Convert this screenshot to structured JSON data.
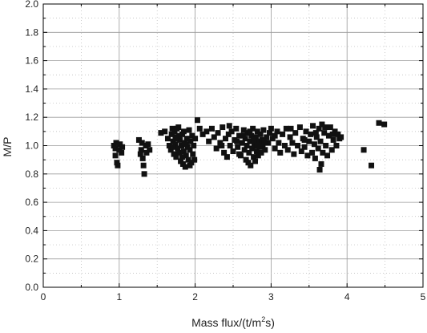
{
  "chart_data": {
    "type": "scatter",
    "title": "",
    "xlabel_base": "Mass flux/(t/m",
    "xlabel_sup": "2",
    "xlabel_tail": "s)",
    "ylabel": "M/P",
    "xlim": [
      0,
      5
    ],
    "ylim": [
      0,
      2.0
    ],
    "xticks": [
      0,
      1,
      2,
      3,
      4,
      5
    ],
    "xtick_labels": [
      "0",
      "1",
      "2",
      "3",
      "4",
      "5"
    ],
    "yticks": [
      0,
      0.2,
      0.4,
      0.6,
      0.8,
      1.0,
      1.2,
      1.4,
      1.6,
      1.8,
      2.0
    ],
    "ytick_labels": [
      "0.0",
      "0.2",
      "0.4",
      "0.6",
      "0.8",
      "1.0",
      "1.2",
      "1.4",
      "1.6",
      "1.8",
      "2.0"
    ],
    "grid": true,
    "marker": "square",
    "marker_color": "#111111",
    "series": [
      {
        "points": [
          [
            0.93,
            1.0
          ],
          [
            0.95,
            0.98
          ],
          [
            0.95,
            0.93
          ],
          [
            0.97,
            0.88
          ],
          [
            0.98,
            0.86
          ],
          [
            1.0,
            0.97
          ],
          [
            1.01,
            1.01
          ],
          [
            1.03,
            0.95
          ],
          [
            0.96,
            1.02
          ],
          [
            1.04,
            0.99
          ],
          [
            1.26,
            1.04
          ],
          [
            1.29,
            0.97
          ],
          [
            1.3,
            1.02
          ],
          [
            1.31,
            0.91
          ],
          [
            1.32,
            0.86
          ],
          [
            1.33,
            0.8
          ],
          [
            1.35,
            1.0
          ],
          [
            1.36,
            0.95
          ],
          [
            1.38,
            1.01
          ],
          [
            1.4,
            0.97
          ],
          [
            1.28,
            0.94
          ],
          [
            1.55,
            1.09
          ],
          [
            1.6,
            1.1
          ],
          [
            1.64,
            1.05
          ],
          [
            1.66,
            1.0
          ],
          [
            1.68,
            0.97
          ],
          [
            1.69,
            1.08
          ],
          [
            1.7,
            1.12
          ],
          [
            1.71,
            1.03
          ],
          [
            1.72,
            0.94
          ],
          [
            1.73,
            1.1
          ],
          [
            1.74,
            1.01
          ],
          [
            1.75,
            0.92
          ],
          [
            1.76,
            1.06
          ],
          [
            1.77,
            0.98
          ],
          [
            1.78,
            1.13
          ],
          [
            1.79,
            0.95
          ],
          [
            1.8,
            1.04
          ],
          [
            1.81,
            0.89
          ],
          [
            1.82,
            1.0
          ],
          [
            1.83,
            1.08
          ],
          [
            1.84,
            0.87
          ],
          [
            1.85,
            0.96
          ],
          [
            1.86,
            1.02
          ],
          [
            1.87,
            0.85
          ],
          [
            1.88,
            0.93
          ],
          [
            1.89,
            1.05
          ],
          [
            1.9,
            0.99
          ],
          [
            1.91,
            0.9
          ],
          [
            1.92,
            1.11
          ],
          [
            1.93,
            0.97
          ],
          [
            1.94,
            1.03
          ],
          [
            1.95,
            0.88
          ],
          [
            1.96,
            1.07
          ],
          [
            1.97,
            0.94
          ],
          [
            1.98,
            1.0
          ],
          [
            1.99,
            0.9
          ],
          [
            2.0,
            1.05
          ],
          [
            1.71,
            0.99
          ],
          [
            1.76,
            1.12
          ],
          [
            1.85,
            1.1
          ],
          [
            1.79,
            1.07
          ],
          [
            1.88,
            1.01
          ],
          [
            1.93,
            0.86
          ],
          [
            1.74,
            1.05
          ],
          [
            1.83,
            0.92
          ],
          [
            2.03,
            1.18
          ],
          [
            2.06,
            1.12
          ],
          [
            2.1,
            1.08
          ],
          [
            2.15,
            1.1
          ],
          [
            2.18,
            1.03
          ],
          [
            2.22,
            1.12
          ],
          [
            2.25,
            1.06
          ],
          [
            2.28,
            0.98
          ],
          [
            2.3,
            1.09
          ],
          [
            2.33,
            1.02
          ],
          [
            2.36,
            1.13
          ],
          [
            2.38,
            0.95
          ],
          [
            2.4,
            1.05
          ],
          [
            2.42,
            0.92
          ],
          [
            2.44,
            1.08
          ],
          [
            2.46,
            1.0
          ],
          [
            2.48,
            1.1
          ],
          [
            2.5,
            0.96
          ],
          [
            2.52,
            1.04
          ],
          [
            2.54,
            1.12
          ],
          [
            2.56,
            0.99
          ],
          [
            2.58,
            1.07
          ],
          [
            2.6,
            0.93
          ],
          [
            2.62,
            1.02
          ],
          [
            2.64,
            1.11
          ],
          [
            2.65,
            0.97
          ],
          [
            2.66,
            1.05
          ],
          [
            2.67,
            0.9
          ],
          [
            2.68,
            1.0
          ],
          [
            2.69,
            1.09
          ],
          [
            2.7,
            0.88
          ],
          [
            2.71,
            0.95
          ],
          [
            2.72,
            1.03
          ],
          [
            2.73,
            0.86
          ],
          [
            2.74,
            1.07
          ],
          [
            2.75,
            0.98
          ],
          [
            2.76,
            1.12
          ],
          [
            2.77,
            0.92
          ],
          [
            2.78,
            1.01
          ],
          [
            2.79,
            0.89
          ],
          [
            2.8,
            1.06
          ],
          [
            2.81,
            0.96
          ],
          [
            2.82,
            1.1
          ],
          [
            2.83,
            0.93
          ],
          [
            2.84,
            1.03
          ],
          [
            2.85,
            0.99
          ],
          [
            2.86,
            1.08
          ],
          [
            2.87,
            0.95
          ],
          [
            2.88,
            1.04
          ],
          [
            2.89,
            1.0
          ],
          [
            2.9,
            1.11
          ],
          [
            2.92,
            0.97
          ],
          [
            2.94,
            1.06
          ],
          [
            2.96,
            1.02
          ],
          [
            2.98,
            1.09
          ],
          [
            2.35,
            1.0
          ],
          [
            2.45,
            1.14
          ],
          [
            2.55,
            1.03
          ],
          [
            2.63,
            1.07
          ],
          [
            2.72,
            1.1
          ],
          [
            2.77,
            1.04
          ],
          [
            2.82,
            1.0
          ],
          [
            2.91,
            1.03
          ],
          [
            2.58,
            0.94
          ],
          [
            3.0,
            1.12
          ],
          [
            3.02,
            1.05
          ],
          [
            3.05,
            0.98
          ],
          [
            3.08,
            1.1
          ],
          [
            3.1,
            1.02
          ],
          [
            3.12,
            0.95
          ],
          [
            3.15,
            1.08
          ],
          [
            3.18,
            1.0
          ],
          [
            3.2,
            1.12
          ],
          [
            3.22,
            0.97
          ],
          [
            3.25,
            1.06
          ],
          [
            3.28,
            1.02
          ],
          [
            3.3,
            0.94
          ],
          [
            3.32,
            1.09
          ],
          [
            3.35,
            1.0
          ],
          [
            3.38,
            1.13
          ],
          [
            3.4,
            0.96
          ],
          [
            3.42,
            1.05
          ],
          [
            3.44,
            0.99
          ],
          [
            3.46,
            1.1
          ],
          [
            3.48,
            0.93
          ],
          [
            3.5,
            1.03
          ],
          [
            3.52,
            1.08
          ],
          [
            3.54,
            0.95
          ],
          [
            3.55,
            1.14
          ],
          [
            3.57,
            1.01
          ],
          [
            3.58,
            0.91
          ],
          [
            3.6,
            1.06
          ],
          [
            3.62,
            0.98
          ],
          [
            3.63,
            1.12
          ],
          [
            3.64,
            0.83
          ],
          [
            3.65,
            1.03
          ],
          [
            3.66,
            0.87
          ],
          [
            3.67,
            1.15
          ],
          [
            3.68,
            0.95
          ],
          [
            3.7,
            1.09
          ],
          [
            3.72,
            1.0
          ],
          [
            3.74,
            0.93
          ],
          [
            3.76,
            1.07
          ],
          [
            3.78,
            1.13
          ],
          [
            3.8,
            0.97
          ],
          [
            3.82,
            1.04
          ],
          [
            3.84,
            1.1
          ],
          [
            3.86,
            1.0
          ],
          [
            3.88,
            1.08
          ],
          [
            3.9,
            1.05
          ],
          [
            3.92,
            1.06
          ],
          [
            3.05,
            1.07
          ],
          [
            3.26,
            1.12
          ],
          [
            3.44,
            1.04
          ],
          [
            3.59,
            1.09
          ],
          [
            3.71,
            1.13
          ],
          [
            3.81,
            1.08
          ],
          [
            4.22,
            0.97
          ],
          [
            4.32,
            0.86
          ],
          [
            4.42,
            1.16
          ],
          [
            4.49,
            1.15
          ]
        ]
      }
    ]
  }
}
